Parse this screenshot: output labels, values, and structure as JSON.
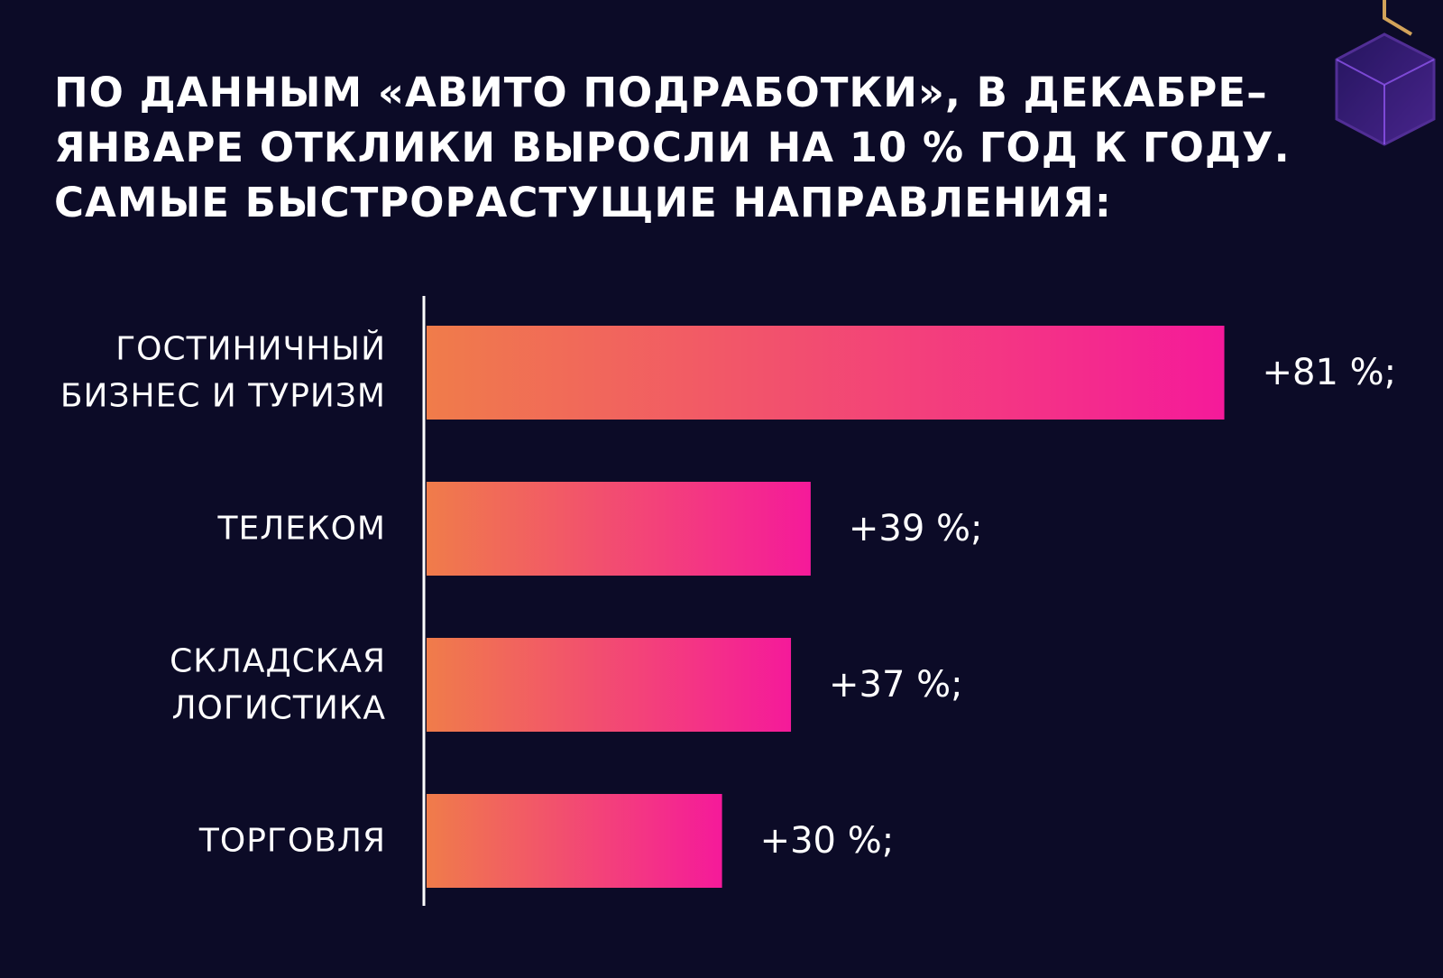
{
  "title_lines": [
    "ПО ДАННЫМ «АВИТО ПОДРАБОТКИ», В ДЕКАБРЕ–",
    "ЯНВАРЕ ОТКЛИКИ ВЫРОСЛИ НА 10 % ГОД К ГОДУ.",
    "САМЫЕ БЫСТРОРАСТУЩИЕ НАПРАВЛЕНИЯ:"
  ],
  "colors": {
    "background": "#0c0b27",
    "bar_gradient_start": "#f07c4a",
    "bar_gradient_end": "#f51a9a",
    "text": "#ffffff",
    "decoration_purple": "#6a2fd0"
  },
  "chart_data": {
    "type": "bar",
    "orientation": "horizontal",
    "categories": [
      [
        "ГОСТИНИЧНЫЙ",
        "БИЗНЕС И ТУРИЗМ"
      ],
      [
        "ТЕЛЕКОМ"
      ],
      [
        "СКЛАДСКАЯ",
        "ЛОГИСТИКА"
      ],
      [
        "ТОРГОВЛЯ"
      ]
    ],
    "values": [
      81,
      39,
      37,
      30
    ],
    "value_labels": [
      "+81 %;",
      "+39 %;",
      "+37 %;",
      "+30 %;"
    ],
    "unit": "%",
    "grid": false,
    "legend": "none"
  }
}
